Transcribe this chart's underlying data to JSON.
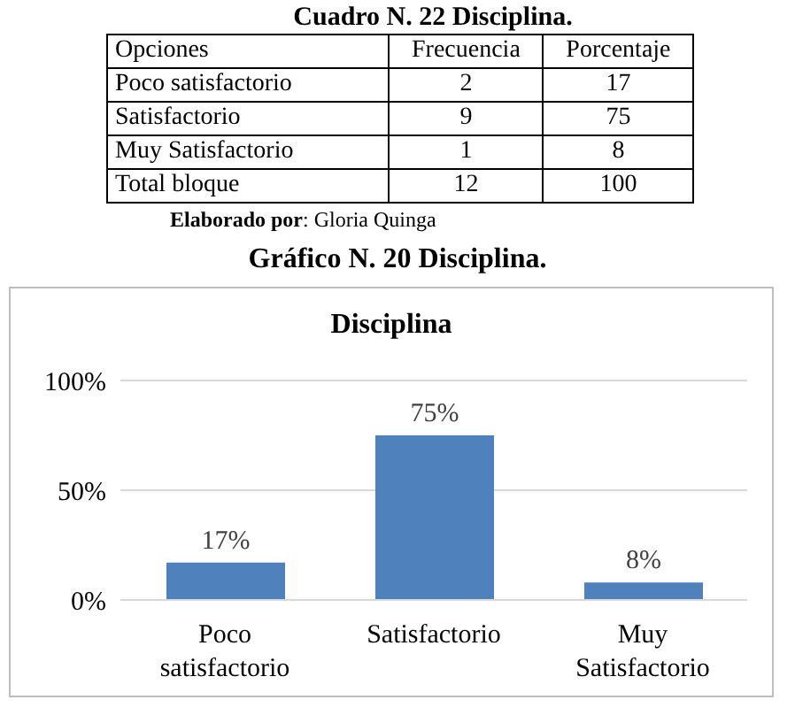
{
  "chart_data": [
    {
      "type": "other",
      "title": "Cuadro N. 22 Disciplina.",
      "xlabel": "Opciones",
      "categories": [
        "Poco satisfactorio",
        "Satisfactorio",
        "Muy Satisfactorio",
        "Total bloque"
      ],
      "series": [
        {
          "name": "Frecuencia",
          "values": [
            2,
            9,
            1,
            12
          ]
        },
        {
          "name": "Porcentaje",
          "values": [
            17,
            75,
            8,
            100
          ]
        }
      ],
      "annotations": [
        "Elaborado por: Gloria Quinga"
      ],
      "data_labels": true
    },
    {
      "type": "bar",
      "title": "Gráfico N. 20  Disciplina.",
      "subtitle": "Disciplina",
      "categories": [
        "Poco satisfactorio",
        "Satisfactorio",
        "Muy Satisfactorio"
      ],
      "values": [
        17,
        75,
        8
      ],
      "value_labels": [
        "17%",
        "75%",
        "8%"
      ],
      "color": "#4f81bd",
      "ylim": [
        0,
        100
      ],
      "yticks": [
        {
          "value": 0,
          "label": "0%"
        },
        {
          "value": 50,
          "label": "50%"
        },
        {
          "value": 100,
          "label": "100%"
        }
      ],
      "grid": "y"
    }
  ]
}
